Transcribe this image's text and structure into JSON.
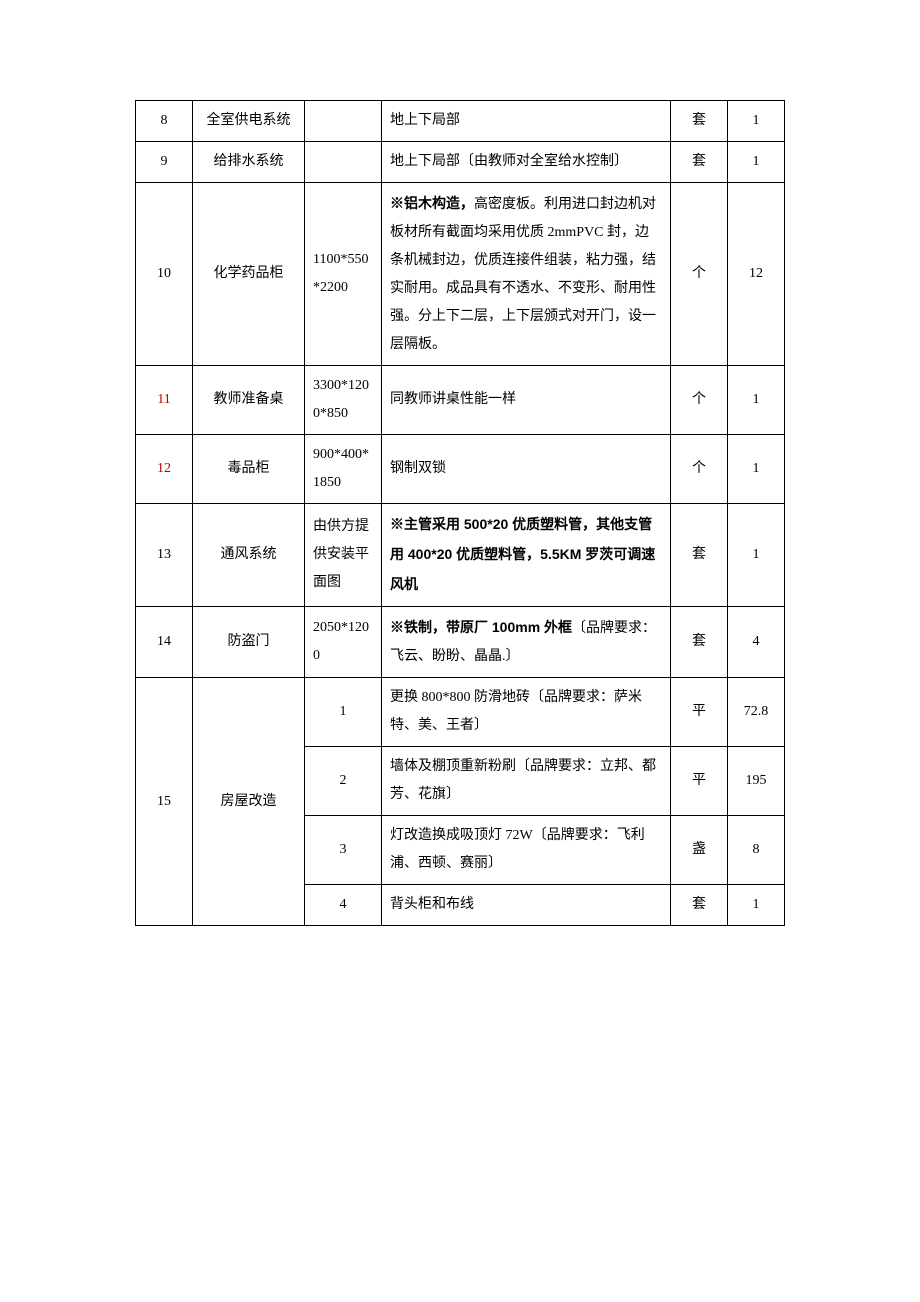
{
  "rows": [
    {
      "num": "8",
      "numClass": "",
      "name": "全室供电系统",
      "spec": "",
      "desc": [
        {
          "t": "地上下局部"
        }
      ],
      "unit": "套",
      "qty": "1"
    },
    {
      "num": "9",
      "numClass": "",
      "name": "给排水系统",
      "spec": "",
      "desc": [
        {
          "t": "地上下局部〔由教师对全室给水控制〕"
        }
      ],
      "unit": "套",
      "qty": "1"
    },
    {
      "num": "10",
      "numClass": "",
      "name": "化学药品柜",
      "spec": "1100*550*2200",
      "desc": [
        {
          "t": "※铝木构造，",
          "bold": true
        },
        {
          "t": "高密度板。利用进口封边机对板材所有截面均采用优质 2mmPVC 封，边条机械封边，优质连接件组装，粘力强，结实耐用。成品具有不透水、不变形、耐用性强。分上下二层，上下层颁式对开门，设一层隔板。"
        }
      ],
      "unit": "个",
      "qty": "12"
    },
    {
      "num": "11",
      "numClass": "red",
      "name": "教师准备桌",
      "spec": "3300*1200*850",
      "desc": [
        {
          "t": "同教师讲桌性能一样"
        }
      ],
      "unit": "个",
      "qty": "1"
    },
    {
      "num": "12",
      "numClass": "red",
      "name": "毒品柜",
      "spec": "900*400*1850",
      "desc": [
        {
          "t": "钢制双锁"
        }
      ],
      "unit": "个",
      "qty": "1"
    },
    {
      "num": "13",
      "numClass": "",
      "name": "通风系统",
      "spec": "由供方提供安装平面图",
      "desc": [
        {
          "t": "※主管采用 500*20 优质塑料管，其他支管用 400*20 优质塑料管，5.5KM 罗茨可调速风机",
          "bold": true
        }
      ],
      "unit": "套",
      "qty": "1"
    },
    {
      "num": "14",
      "numClass": "",
      "name": "防盗门",
      "spec": "2050*1200",
      "desc": [
        {
          "t": "※铁制，带原厂 100mm 外框",
          "bold": true
        },
        {
          "t": "〔品牌要求：飞云、盼盼、晶晶.〕"
        }
      ],
      "unit": "套",
      "qty": "4"
    }
  ],
  "row15": {
    "num": "15",
    "name": "房屋改造",
    "subs": [
      {
        "spec": "1",
        "desc": "更换 800*800 防滑地砖〔品牌要求：萨米特、美、王者〕",
        "unit": "平",
        "qty": "72.8"
      },
      {
        "spec": "2",
        "desc": "墙体及棚顶重新粉刷〔品牌要求：立邦、都芳、花旗〕",
        "unit": "平",
        "qty": "195"
      },
      {
        "spec": "3",
        "desc": "灯改造换成吸顶灯 72W〔品牌要求：飞利浦、西顿、赛丽〕",
        "unit": "盏",
        "qty": "8"
      },
      {
        "spec": "4",
        "desc": "背头柜和布线",
        "unit": "套",
        "qty": "1"
      }
    ]
  }
}
